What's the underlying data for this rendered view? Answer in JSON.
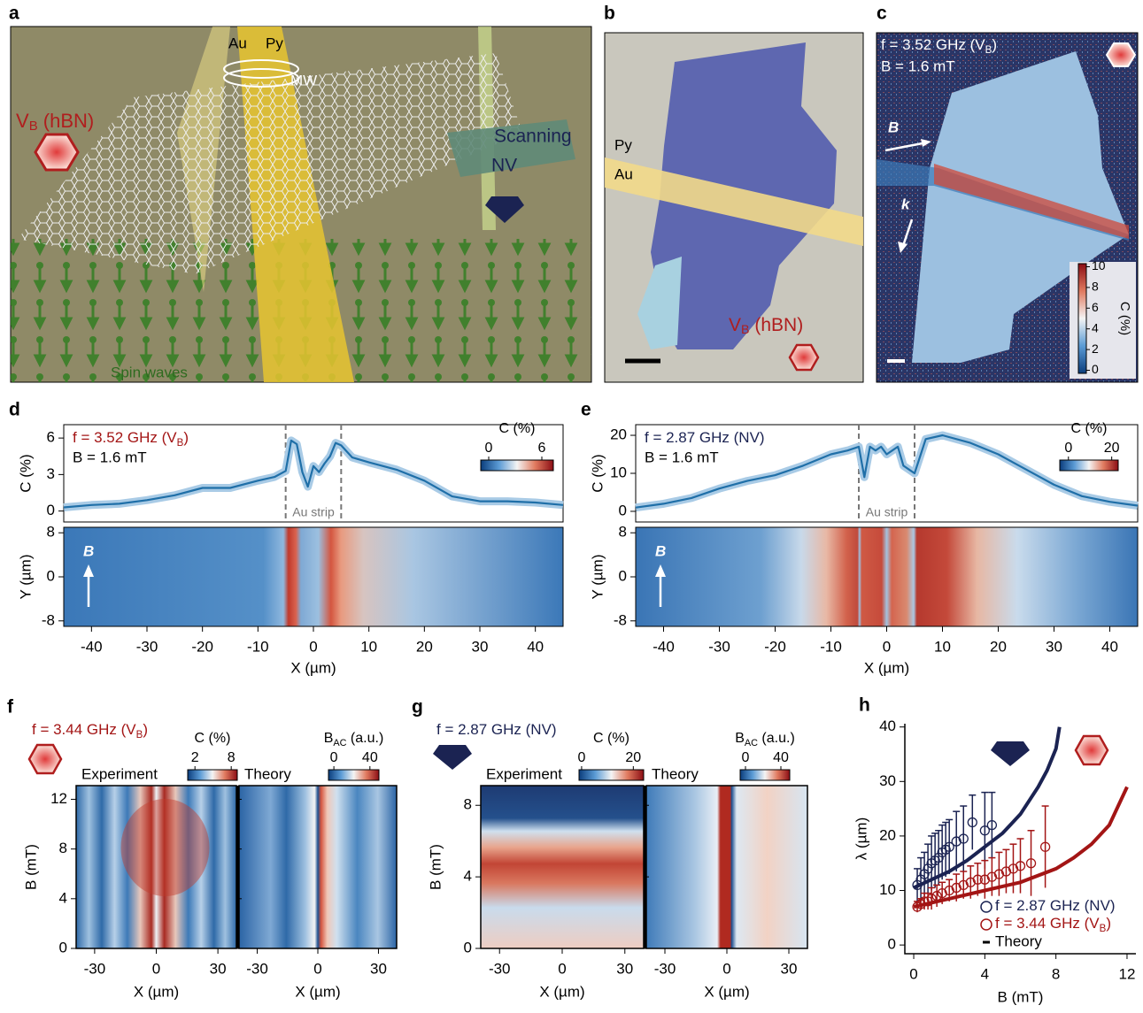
{
  "images": [
    {
      "panel": "a",
      "labels": {
        "au": "Au",
        "py": "Py",
        "mw": "MW",
        "vb": {
          "pre": "V",
          "sub": "B",
          "post": " (hBN)"
        },
        "scanning": "Scanning",
        "nv": "NV",
        "spin_waves": "Spin waves"
      }
    },
    {
      "panel": "b",
      "labels": {
        "py": "Py",
        "au": "Au",
        "vb": {
          "pre": "V",
          "sub": "B",
          "post": " (hBN)"
        }
      }
    },
    {
      "panel": "c",
      "labels": {
        "freq": {
          "pre": "f = 3.52 GHz (V",
          "sub": "B",
          "post": ")"
        },
        "field": "B = 1.6 mT",
        "b_arrow": "B",
        "k_arrow": "k"
      },
      "colorbar": {
        "label": "C (%)",
        "lim": [
          -0.3,
          10.3
        ],
        "ticks": [
          0,
          2,
          4,
          6,
          8,
          10
        ]
      }
    }
  ],
  "chart_data": [
    {
      "type": "line",
      "panel": "d",
      "color": "#1f6fa8",
      "annotation": {
        "pre": "f = 3.52 GHz (V",
        "sub": "B",
        "post": ")"
      },
      "field": "B = 1.6 mT",
      "strip": "Au strip",
      "strip_edges": [
        -5,
        5
      ],
      "x": [
        -45,
        -40,
        -35,
        -30,
        -25,
        -20,
        -15,
        -10,
        -7,
        -5,
        -4,
        -3,
        -2,
        -1,
        0,
        1,
        2,
        3,
        4,
        5,
        7,
        10,
        15,
        20,
        25,
        30,
        35,
        40,
        45
      ],
      "values": [
        0.3,
        0.5,
        0.6,
        0.9,
        1.3,
        1.9,
        1.9,
        2.5,
        2.8,
        3.3,
        5.8,
        5.5,
        3.2,
        2.0,
        3.7,
        3.2,
        3.9,
        4.5,
        5.6,
        5.4,
        4.4,
        4.0,
        3.4,
        2.5,
        1.2,
        0.8,
        0.8,
        0.7,
        0.5
      ],
      "xlim": [
        -45,
        45
      ],
      "ylim": [
        -0.9,
        7.1
      ],
      "yticks": [
        0,
        3,
        6
      ],
      "xticks": [
        -40,
        -30,
        -20,
        -10,
        0,
        10,
        20,
        30,
        40
      ],
      "xlabel": "X (µm)",
      "ylabel": "C (%)",
      "colorbar": {
        "label": "C (%)",
        "lim": [
          -0.9,
          7.3
        ],
        "ticks": [
          0,
          6
        ]
      },
      "map": {
        "ylabel": "Y (µm)",
        "ylim": [
          -9,
          9
        ],
        "yticks": [
          -8,
          0,
          8
        ],
        "arrow": "B"
      }
    },
    {
      "type": "line",
      "panel": "e",
      "color": "#1f6fa8",
      "annotation": {
        "pre": "f = 2.87 GHz (NV)"
      },
      "field": "B = 1.6 mT",
      "strip": "Au strip",
      "strip_edges": [
        -5,
        5
      ],
      "x": [
        -45,
        -40,
        -35,
        -30,
        -25,
        -20,
        -15,
        -10,
        -7,
        -5,
        -4,
        -3,
        -2,
        -1,
        0,
        1,
        2,
        3,
        4,
        5,
        7,
        10,
        15,
        20,
        25,
        30,
        35,
        40,
        45
      ],
      "values": [
        1,
        2,
        3.5,
        6,
        8,
        9.5,
        12,
        15,
        16,
        17,
        9,
        17,
        16,
        17,
        15,
        16,
        17,
        12,
        11,
        10,
        19,
        20,
        18,
        15,
        11,
        7,
        4,
        2.5,
        1.5
      ],
      "xlim": [
        -45,
        45
      ],
      "ylim": [
        -2.8,
        22.8
      ],
      "yticks": [
        0,
        10,
        20
      ],
      "xticks": [
        -40,
        -30,
        -20,
        -10,
        0,
        10,
        20,
        30,
        40
      ],
      "xlabel": "X (µm)",
      "ylabel": "C (%)",
      "colorbar": {
        "label": "C (%)",
        "lim": [
          -4,
          23
        ],
        "ticks": [
          0,
          20
        ]
      },
      "map": {
        "ylabel": "Y (µm)",
        "ylim": [
          -9,
          9
        ],
        "yticks": [
          -8,
          0,
          8
        ],
        "arrow": "B"
      }
    },
    {
      "type": "heatmap",
      "panel": "f",
      "title": {
        "pre": "f = 3.44 GHz (V",
        "sub": "B",
        "post": ")"
      },
      "experiment": "Experiment",
      "theory": "Theory",
      "xlim": [
        -39,
        39
      ],
      "ylim": [
        0,
        13.1
      ],
      "xticks": [
        -30,
        0,
        30
      ],
      "yticks": [
        0,
        4,
        8,
        12
      ],
      "xlabel": "X (µm)",
      "ylabel": "B (mT)",
      "colorbars": [
        {
          "label": {
            "pre": "C (%)"
          },
          "lim": [
            0.8,
            9
          ],
          "ticks": [
            2,
            8
          ]
        },
        {
          "label": {
            "pre": "B",
            "sub": "AC",
            "post": " (a.u.)"
          },
          "lim": [
            -6,
            50
          ],
          "ticks": [
            0,
            40
          ]
        }
      ]
    },
    {
      "type": "heatmap",
      "panel": "g",
      "title": {
        "pre": "f = 2.87 GHz (NV)"
      },
      "experiment": "Experiment",
      "theory": "Theory",
      "xlim": [
        -39,
        39
      ],
      "ylim": [
        0,
        9.1
      ],
      "xticks": [
        -30,
        0,
        30
      ],
      "yticks": [
        0,
        4,
        8
      ],
      "xlabel": "X (µm)",
      "ylabel": "B (mT)",
      "colorbars": [
        {
          "label": {
            "pre": "C (%)"
          },
          "lim": [
            -1,
            24
          ],
          "ticks": [
            0,
            20
          ]
        },
        {
          "label": {
            "pre": "B",
            "sub": "AC",
            "post": " (a.u.)"
          },
          "lim": [
            -6,
            50
          ],
          "ticks": [
            0,
            40
          ]
        }
      ]
    },
    {
      "type": "scatter",
      "panel": "h",
      "xlabel": "B (mT)",
      "ylabel": "λ (µm)",
      "xlim": [
        -0.5,
        12.5
      ],
      "ylim": [
        -1.6,
        40.6
      ],
      "xticks": [
        0,
        4,
        8,
        12
      ],
      "yticks": [
        0,
        10,
        20,
        30,
        40
      ],
      "series": [
        {
          "name": {
            "pre": "f = 2.87 GHz (NV)"
          },
          "color": "#1b2352",
          "x": [
            0.2,
            0.4,
            0.6,
            0.8,
            1.0,
            1.2,
            1.4,
            1.6,
            1.8,
            2.0,
            2.4,
            2.8,
            3.3,
            4.0,
            4.4
          ],
          "values": [
            11,
            12,
            13,
            14,
            15,
            15.5,
            16,
            17,
            17.5,
            18,
            19,
            19.5,
            22.5,
            21,
            22
          ],
          "errors": [
            3,
            4,
            4,
            4.5,
            5,
            5,
            5,
            5,
            5,
            5,
            5.5,
            6,
            5,
            7,
            6
          ]
        },
        {
          "name": {
            "pre": "f = 3.44 GHz (V",
            "sub": "B",
            "post": ")"
          },
          "color": "#a31515",
          "x": [
            0.2,
            0.4,
            0.6,
            0.8,
            1.0,
            1.3,
            1.6,
            2.0,
            2.4,
            2.8,
            3.2,
            3.6,
            4.0,
            4.4,
            4.8,
            5.2,
            5.6,
            6.0,
            6.6,
            7.4
          ],
          "values": [
            7,
            7.5,
            8,
            8,
            8.5,
            9,
            9.5,
            10,
            10.5,
            11,
            11.5,
            12,
            12,
            12.5,
            13,
            13.5,
            14,
            14.5,
            15,
            18
          ],
          "errors": [
            1,
            1,
            1.5,
            1.5,
            2,
            2,
            2,
            2,
            2.5,
            2.5,
            3,
            3,
            3.5,
            3.5,
            4,
            4,
            4.5,
            5,
            6,
            7.5
          ]
        }
      ],
      "theory_name": "Theory",
      "theory": [
        {
          "color": "#1b2352",
          "x": [
            0,
            1,
            2,
            3,
            4,
            5,
            6,
            7,
            7.5,
            8,
            8.2
          ],
          "values": [
            10.5,
            12,
            13.5,
            15.5,
            18,
            20.5,
            24,
            29,
            32,
            36,
            40
          ]
        },
        {
          "color": "#a31515",
          "x": [
            0,
            2,
            4,
            6,
            8,
            9,
            10,
            11,
            12
          ],
          "values": [
            7,
            8.5,
            10,
            11.5,
            14,
            16,
            18.5,
            22,
            29
          ]
        }
      ]
    }
  ]
}
